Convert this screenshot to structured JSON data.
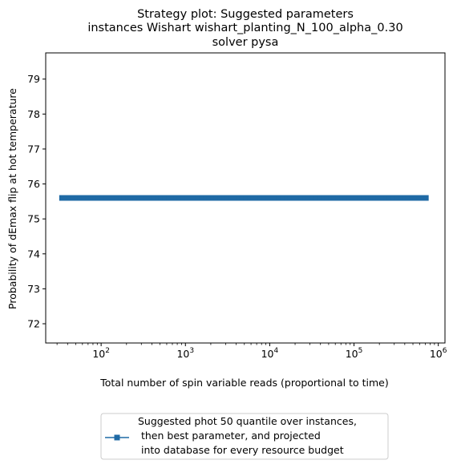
{
  "chart_data": {
    "type": "line",
    "title_lines": [
      "Strategy plot: Suggested parameters",
      "instances Wishart wishart_planting_N_100_alpha_0.30",
      "solver pysa"
    ],
    "xlabel": "Total number of spin variable reads (proportional to time)",
    "ylabel": "Probability of dEmax flip at hot temperature",
    "x_scale": "log",
    "xlim": [
      22,
      1200000
    ],
    "ylim": [
      71.45,
      79.75
    ],
    "x_ticks": [
      {
        "value": 100,
        "base": "10",
        "exp": "2"
      },
      {
        "value": 1000,
        "base": "10",
        "exp": "3"
      },
      {
        "value": 10000,
        "base": "10",
        "exp": "4"
      },
      {
        "value": 100000,
        "base": "10",
        "exp": "5"
      },
      {
        "value": 1000000,
        "base": "10",
        "exp": "6"
      }
    ],
    "y_ticks": [
      "72",
      "73",
      "74",
      "75",
      "76",
      "77",
      "78",
      "79"
    ],
    "grid": false,
    "legend_position": "below-plot",
    "series": [
      {
        "name_lines": [
          "Suggested phot 50 quantile over instances,",
          " then best parameter, and projected",
          " into database for every resource budget"
        ],
        "color": "#1f6aa5",
        "marker": "square",
        "x_start": 34,
        "x_end": 720000,
        "num_points": 100,
        "y_value": 75.6
      }
    ]
  }
}
